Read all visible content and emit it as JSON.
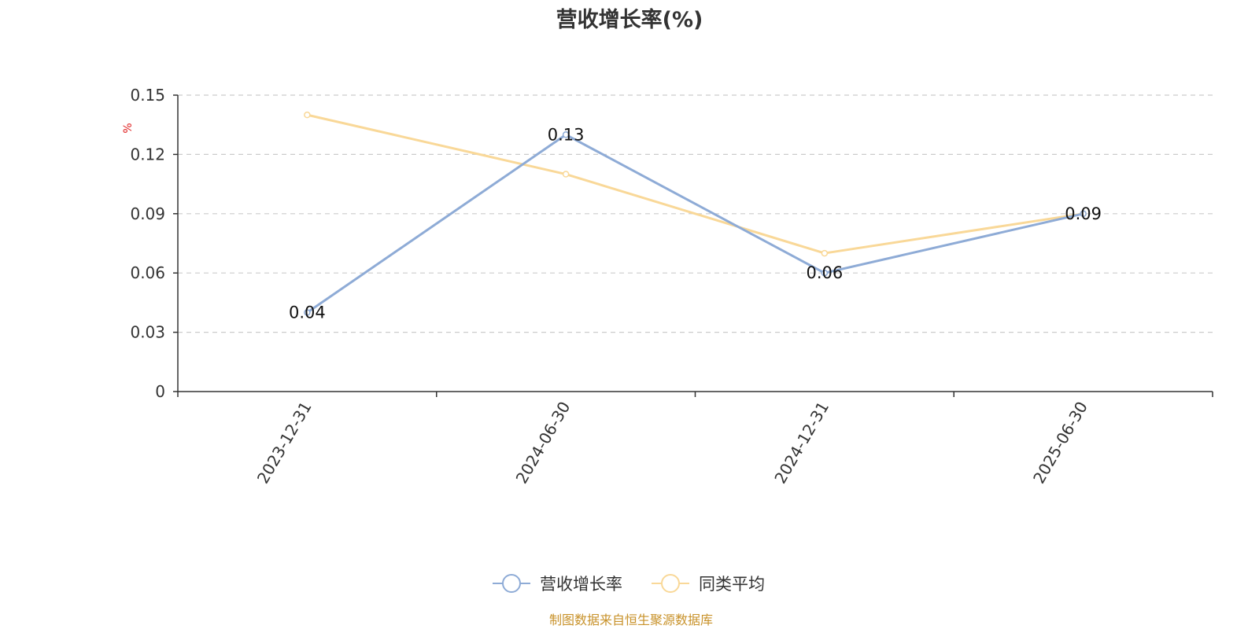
{
  "chart_data": {
    "type": "line",
    "title": "营收增长率(%)",
    "y_unit": "%",
    "categories": [
      "2023-12-31",
      "2024-06-30",
      "2024-12-31",
      "2025-06-30"
    ],
    "yticks": [
      "0",
      "0.03",
      "0.06",
      "0.09",
      "0.12",
      "0.15"
    ],
    "ylim": [
      0,
      0.15
    ],
    "grid": true,
    "legend_position": "bottom-center",
    "series": [
      {
        "name": "营收增长率",
        "values": [
          0.04,
          0.13,
          0.06,
          0.09
        ],
        "labels": [
          "0.04",
          "0.13",
          "0.06",
          "0.09"
        ],
        "color": "#8eabd6"
      },
      {
        "name": "同类平均",
        "values": [
          0.14,
          0.11,
          0.07,
          0.09
        ],
        "color": "#f9d898"
      }
    ],
    "source": "制图数据来自恒生聚源数据库"
  }
}
